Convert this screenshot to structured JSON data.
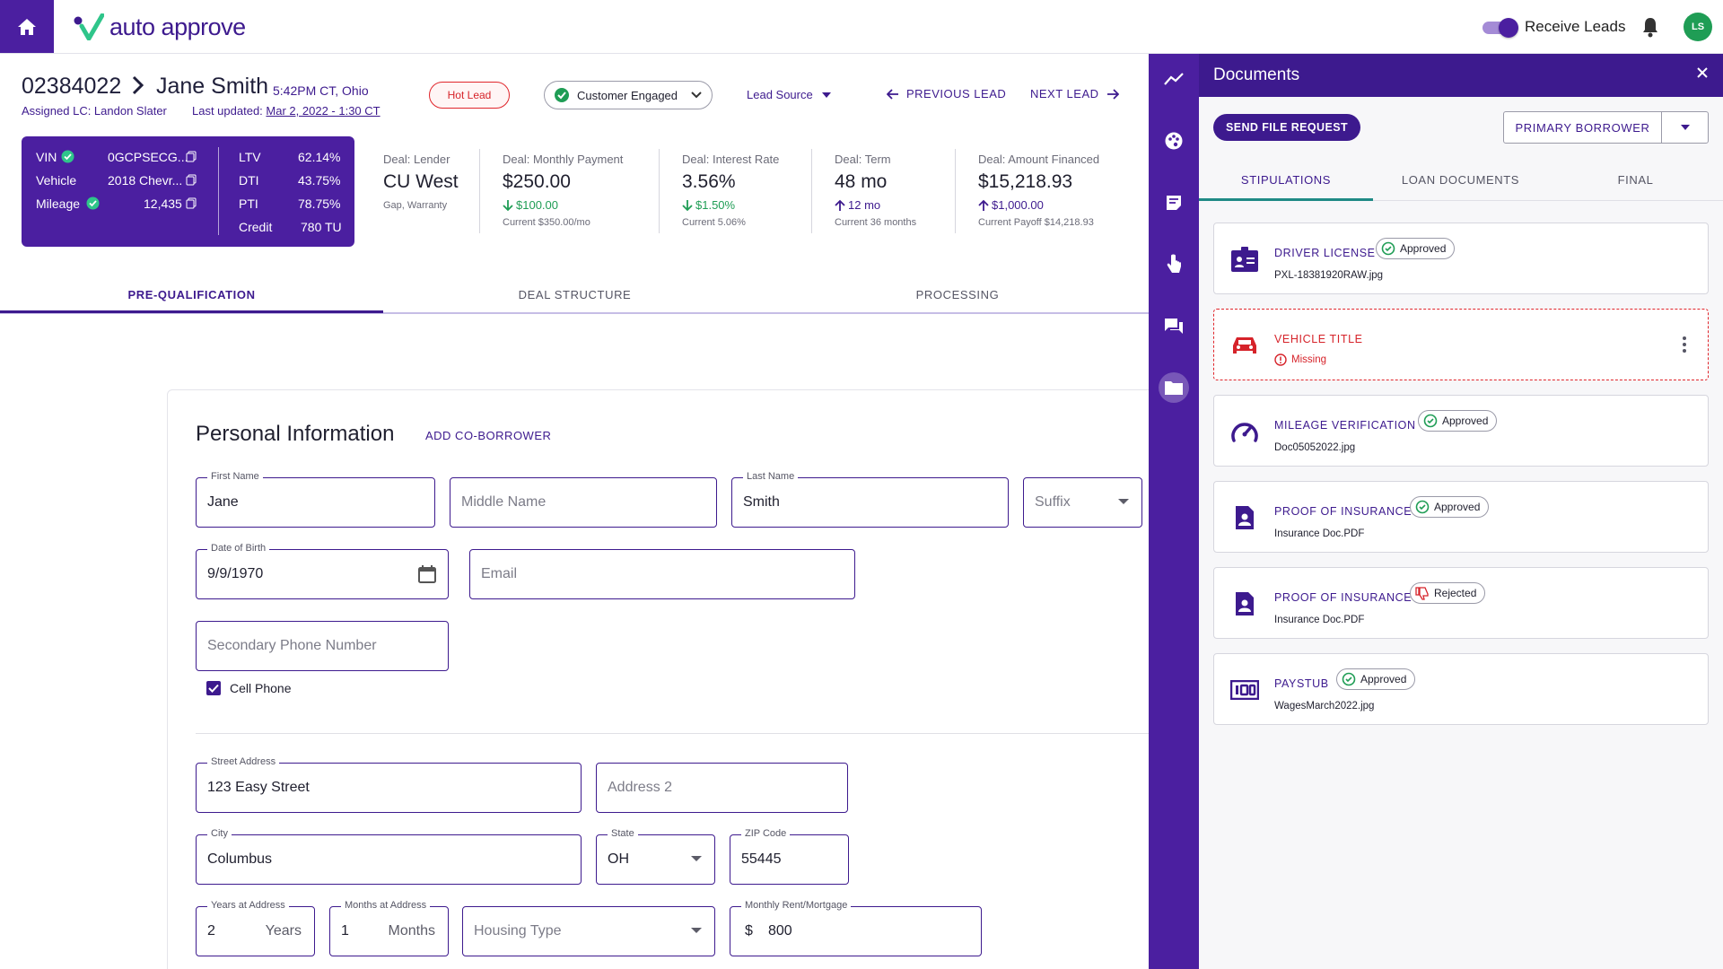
{
  "app": {
    "logo_text": "auto approve",
    "receive_leads_label": "Receive Leads",
    "avatar_initials": "LS"
  },
  "lead": {
    "id": "02384022",
    "name": "Jane Smith",
    "time_location": "5:42PM CT, Ohio",
    "assigned": "Assigned LC: Landon Slater",
    "updated_label": "Last updated:",
    "updated_value": "Mar 2, 2022 - 1:30 CT",
    "hot_lead": "Hot Lead",
    "status": "Customer Engaged",
    "lead_source": "Lead Source",
    "prev": "PREVIOUS LEAD",
    "next": "NEXT LEAD"
  },
  "vehicle_card": {
    "left": [
      {
        "label": "VIN",
        "value": "0GCPSECG...",
        "verified": true
      },
      {
        "label": "Vehicle",
        "value": "2018 Chevr...",
        "verified": false
      },
      {
        "label": "Mileage",
        "value": "12,435",
        "verified": true
      }
    ],
    "right": [
      {
        "label": "LTV",
        "value": "62.14%"
      },
      {
        "label": "DTI",
        "value": "43.75%"
      },
      {
        "label": "PTI",
        "value": "78.75%"
      },
      {
        "label": "Credit",
        "value": "780 TU"
      }
    ]
  },
  "deal": {
    "lender": {
      "label": "Deal: Lender",
      "value": "CU West",
      "sub": "Gap, Warranty"
    },
    "payment": {
      "label": "Deal: Monthly Payment",
      "value": "$250.00",
      "change": "$100.00",
      "direction": "down",
      "sub": "Current $350.00/mo"
    },
    "rate": {
      "label": "Deal: Interest Rate",
      "value": "3.56%",
      "change": "$1.50%",
      "direction": "down",
      "sub": "Current 5.06%"
    },
    "term": {
      "label": "Deal: Term",
      "value": "48 mo",
      "change": "12 mo",
      "direction": "up",
      "sub": "Current 36 months"
    },
    "financed": {
      "label": "Deal: Amount Financed",
      "value": "$15,218.93",
      "change": "$1,000.00",
      "direction": "up",
      "sub": "Current Payoff $14,218.93"
    }
  },
  "tabs": {
    "pre": "PRE-QUALIFICATION",
    "deal": "DEAL STRUCTURE",
    "processing": "PROCESSING",
    "active": "pre"
  },
  "form": {
    "title": "Personal Information",
    "add_coborrower": "ADD CO-BORROWER",
    "first_name": {
      "label": "First Name",
      "value": "Jane"
    },
    "middle_name": {
      "placeholder": "Middle Name"
    },
    "last_name": {
      "label": "Last Name",
      "value": "Smith"
    },
    "suffix": {
      "placeholder": "Suffix"
    },
    "dob": {
      "label": "Date of Birth",
      "value": "9/9/1970"
    },
    "email": {
      "placeholder": "Email"
    },
    "secondary_phone": {
      "placeholder": "Secondary Phone Number"
    },
    "cell_phone": {
      "label": "Cell Phone",
      "checked": true
    },
    "street": {
      "label": "Street Address",
      "value": "123 Easy Street"
    },
    "address2": {
      "placeholder": "Address 2"
    },
    "city": {
      "label": "City",
      "value": "Columbus"
    },
    "state": {
      "label": "State",
      "value": "OH"
    },
    "zip": {
      "label": "ZIP Code",
      "value": "55445"
    },
    "years_at_address": {
      "label": "Years at Address",
      "value": "2",
      "suffix": "Years"
    },
    "months_at_address": {
      "label": "Months at Address",
      "value": "1",
      "suffix": "Months"
    },
    "housing_type": {
      "placeholder": "Housing Type"
    },
    "rent": {
      "label": "Monthly Rent/Mortgage",
      "prefix": "$",
      "value": "800"
    }
  },
  "documents": {
    "title": "Documents",
    "send_request": "SEND FILE REQUEST",
    "borrower": "PRIMARY BORROWER",
    "tabs": [
      "STIPULATIONS",
      "LOAN DOCUMENTS",
      "FINAL"
    ],
    "active_tab": "STIPULATIONS",
    "items": [
      {
        "title": "DRIVER LICENSE",
        "status": "Approved",
        "file": "PXL-18381920RAW.jpg",
        "icon": "id-card-icon"
      },
      {
        "title": "VEHICLE TITLE",
        "status": "Missing",
        "file": "",
        "icon": "car-icon"
      },
      {
        "title": "MILEAGE VERIFICATION",
        "status": "Approved",
        "file": "Doc05052022.jpg",
        "icon": "speedometer-icon"
      },
      {
        "title": "PROOF OF INSURANCE",
        "status": "Approved",
        "file": "Insurance Doc.PDF",
        "icon": "person-document-icon"
      },
      {
        "title": "PROOF OF INSURANCE",
        "status": "Rejected",
        "file": "Insurance Doc.PDF",
        "icon": "person-document-icon"
      },
      {
        "title": "PAYSTUB",
        "status": "Approved",
        "file": "WagesMarch2022.jpg",
        "icon": "money-icon"
      }
    ]
  },
  "colors": {
    "brand": "#4b1fa0",
    "brand_dark": "#3d1a8e",
    "success": "#1f9d55",
    "danger": "#d6232a",
    "teal": "#1f8a85"
  }
}
